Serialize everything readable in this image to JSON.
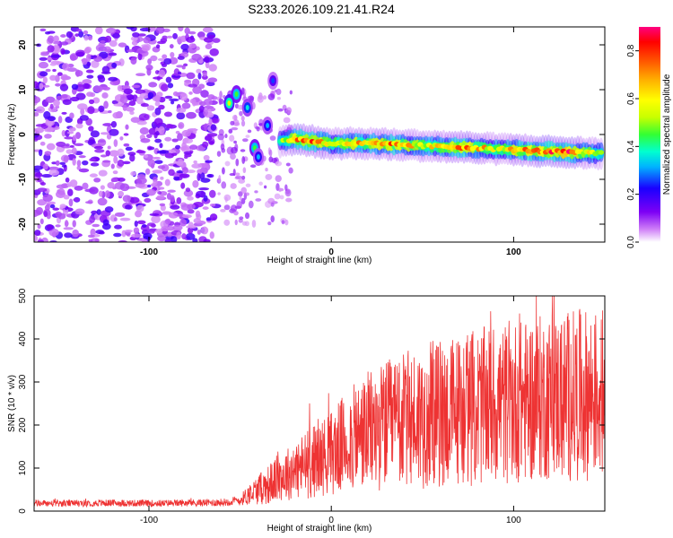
{
  "chart_data": [
    {
      "type": "heatmap",
      "title": "S233.2026.109.21.41.R24",
      "xlabel": "Height of straight line (km)",
      "ylabel": "Frequency (Hz)",
      "xlim": [
        -163,
        150
      ],
      "ylim": [
        -24,
        24
      ],
      "xticks": [
        -100,
        0,
        100
      ],
      "xtick_labels": [
        "-100",
        "0",
        "100"
      ],
      "yticks": [
        -20,
        -10,
        0,
        10,
        20
      ],
      "ytick_labels": [
        "-20",
        "-10",
        "0",
        "10",
        "20"
      ],
      "colorbar": {
        "label": "Normalized spectral amplitude",
        "range": [
          0.0,
          0.9
        ],
        "ticks": [
          0.0,
          0.2,
          0.4,
          0.6,
          0.8
        ],
        "tick_labels": [
          "0.0",
          "0.2",
          "0.4",
          "0.6",
          "0.8"
        ],
        "colors": [
          "#ffffff",
          "#cf7ff7",
          "#7d00f5",
          "#1a00ff",
          "#00b3ff",
          "#00ffd0",
          "#33ff33",
          "#c8ff00",
          "#ffff00",
          "#ffb300",
          "#ff4d00",
          "#ff0000",
          "#ff0080"
        ]
      },
      "ridge": {
        "height_km": [
          -28,
          -20,
          -10,
          0,
          10,
          20,
          30,
          40,
          50,
          60,
          70,
          80,
          90,
          100,
          110,
          120,
          130,
          140,
          148
        ],
        "frequency_hz": [
          -1.5,
          -1.0,
          -1.5,
          -2.0,
          -2.0,
          -2.0,
          -2.2,
          -2.3,
          -2.5,
          -2.7,
          -2.8,
          -3.0,
          -3.2,
          -3.4,
          -3.6,
          -3.8,
          -4.0,
          -4.1,
          -4.2
        ],
        "amplitude": [
          0.45,
          0.75,
          0.8,
          0.6,
          0.7,
          0.65,
          0.75,
          0.7,
          0.6,
          0.65,
          0.8,
          0.7,
          0.6,
          0.7,
          0.75,
          0.8,
          0.85,
          0.6,
          0.55
        ]
      },
      "noise_region_km": [
        -163,
        -63
      ],
      "features": [
        {
          "height_km": -56,
          "frequency_hz": 7,
          "amplitude": 0.55
        },
        {
          "height_km": -52,
          "frequency_hz": 9,
          "amplitude": 0.45
        },
        {
          "height_km": -46,
          "frequency_hz": 6,
          "amplitude": 0.35
        },
        {
          "height_km": -42,
          "frequency_hz": -3,
          "amplitude": 0.45
        },
        {
          "height_km": -40,
          "frequency_hz": -5,
          "amplitude": 0.3
        },
        {
          "height_km": -35,
          "frequency_hz": 2,
          "amplitude": 0.3
        },
        {
          "height_km": -32,
          "frequency_hz": 12,
          "amplitude": 0.25
        }
      ]
    },
    {
      "type": "line",
      "xlabel": "Height of straight line (km)",
      "ylabel": "SNR (10 * v/v)",
      "xlim": [
        -163,
        150
      ],
      "ylim": [
        0,
        500
      ],
      "xticks": [
        -100,
        0,
        100
      ],
      "xtick_labels": [
        "-100",
        "0",
        "100"
      ],
      "yticks": [
        0,
        100,
        200,
        300,
        400,
        500
      ],
      "ytick_labels": [
        "0",
        "100",
        "200",
        "300",
        "400",
        "500"
      ],
      "color": "#ee3333",
      "series": [
        {
          "name": "SNR",
          "x": [
            -163,
            -140,
            -120,
            -100,
            -80,
            -60,
            -50,
            -45,
            -40,
            -35,
            -30,
            -25,
            -20,
            -15,
            -10,
            -5,
            0,
            5,
            10,
            15,
            20,
            25,
            30,
            35,
            40,
            45,
            50,
            55,
            60,
            65,
            70,
            75,
            80,
            85,
            90,
            95,
            100,
            105,
            110,
            115,
            120,
            125,
            130,
            135,
            140,
            145,
            150
          ],
          "mean": [
            18,
            18,
            19,
            18,
            19,
            20,
            25,
            40,
            50,
            60,
            75,
            85,
            95,
            105,
            115,
            125,
            135,
            150,
            165,
            175,
            185,
            190,
            200,
            205,
            210,
            215,
            220,
            225,
            225,
            230,
            235,
            240,
            240,
            245,
            250,
            250,
            255,
            255,
            260,
            262,
            265,
            265,
            268,
            270,
            270,
            272,
            275
          ],
          "spread": [
            8,
            8,
            8,
            8,
            8,
            9,
            12,
            25,
            35,
            45,
            55,
            60,
            70,
            80,
            85,
            90,
            100,
            110,
            120,
            130,
            140,
            145,
            150,
            155,
            160,
            165,
            170,
            170,
            175,
            175,
            180,
            180,
            185,
            185,
            190,
            190,
            190,
            190,
            195,
            195,
            195,
            195,
            200,
            200,
            200,
            200,
            200
          ]
        }
      ]
    }
  ]
}
